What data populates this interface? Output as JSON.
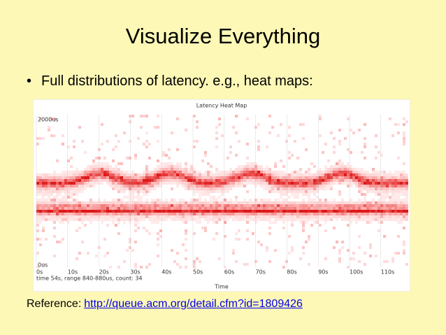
{
  "slide": {
    "title": "Visualize Everything",
    "bullet": "Full distributions of latency. e.g., heat maps:",
    "heat_map": {
      "title": "Latency Heat Map",
      "y_top": "2000us",
      "y_bottom": "0us",
      "x_labels": [
        "0s",
        "10s",
        "20s",
        "30s",
        "40s",
        "50s",
        "60s",
        "70s",
        "80s",
        "90s",
        "100s",
        "110s"
      ],
      "status": "time 54s, range 840-880us, count: 34",
      "x_axis_label": "Time"
    },
    "reference_label": "Reference:",
    "reference_link": "http://queue.acm.org/detail.cfm?id=1809426"
  }
}
